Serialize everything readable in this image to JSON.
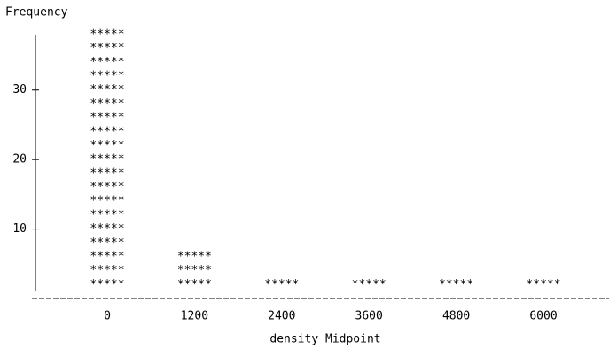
{
  "chart_data": {
    "type": "bar",
    "y_label": "Frequency",
    "x_label": "density Midpoint",
    "categories": [
      "0",
      "1200",
      "2400",
      "3600",
      "4800",
      "6000"
    ],
    "values": [
      38,
      6,
      2,
      2,
      2,
      2
    ],
    "ylim": [
      0,
      38
    ],
    "yticks": [
      10,
      20,
      30
    ],
    "color": "#000000"
  }
}
